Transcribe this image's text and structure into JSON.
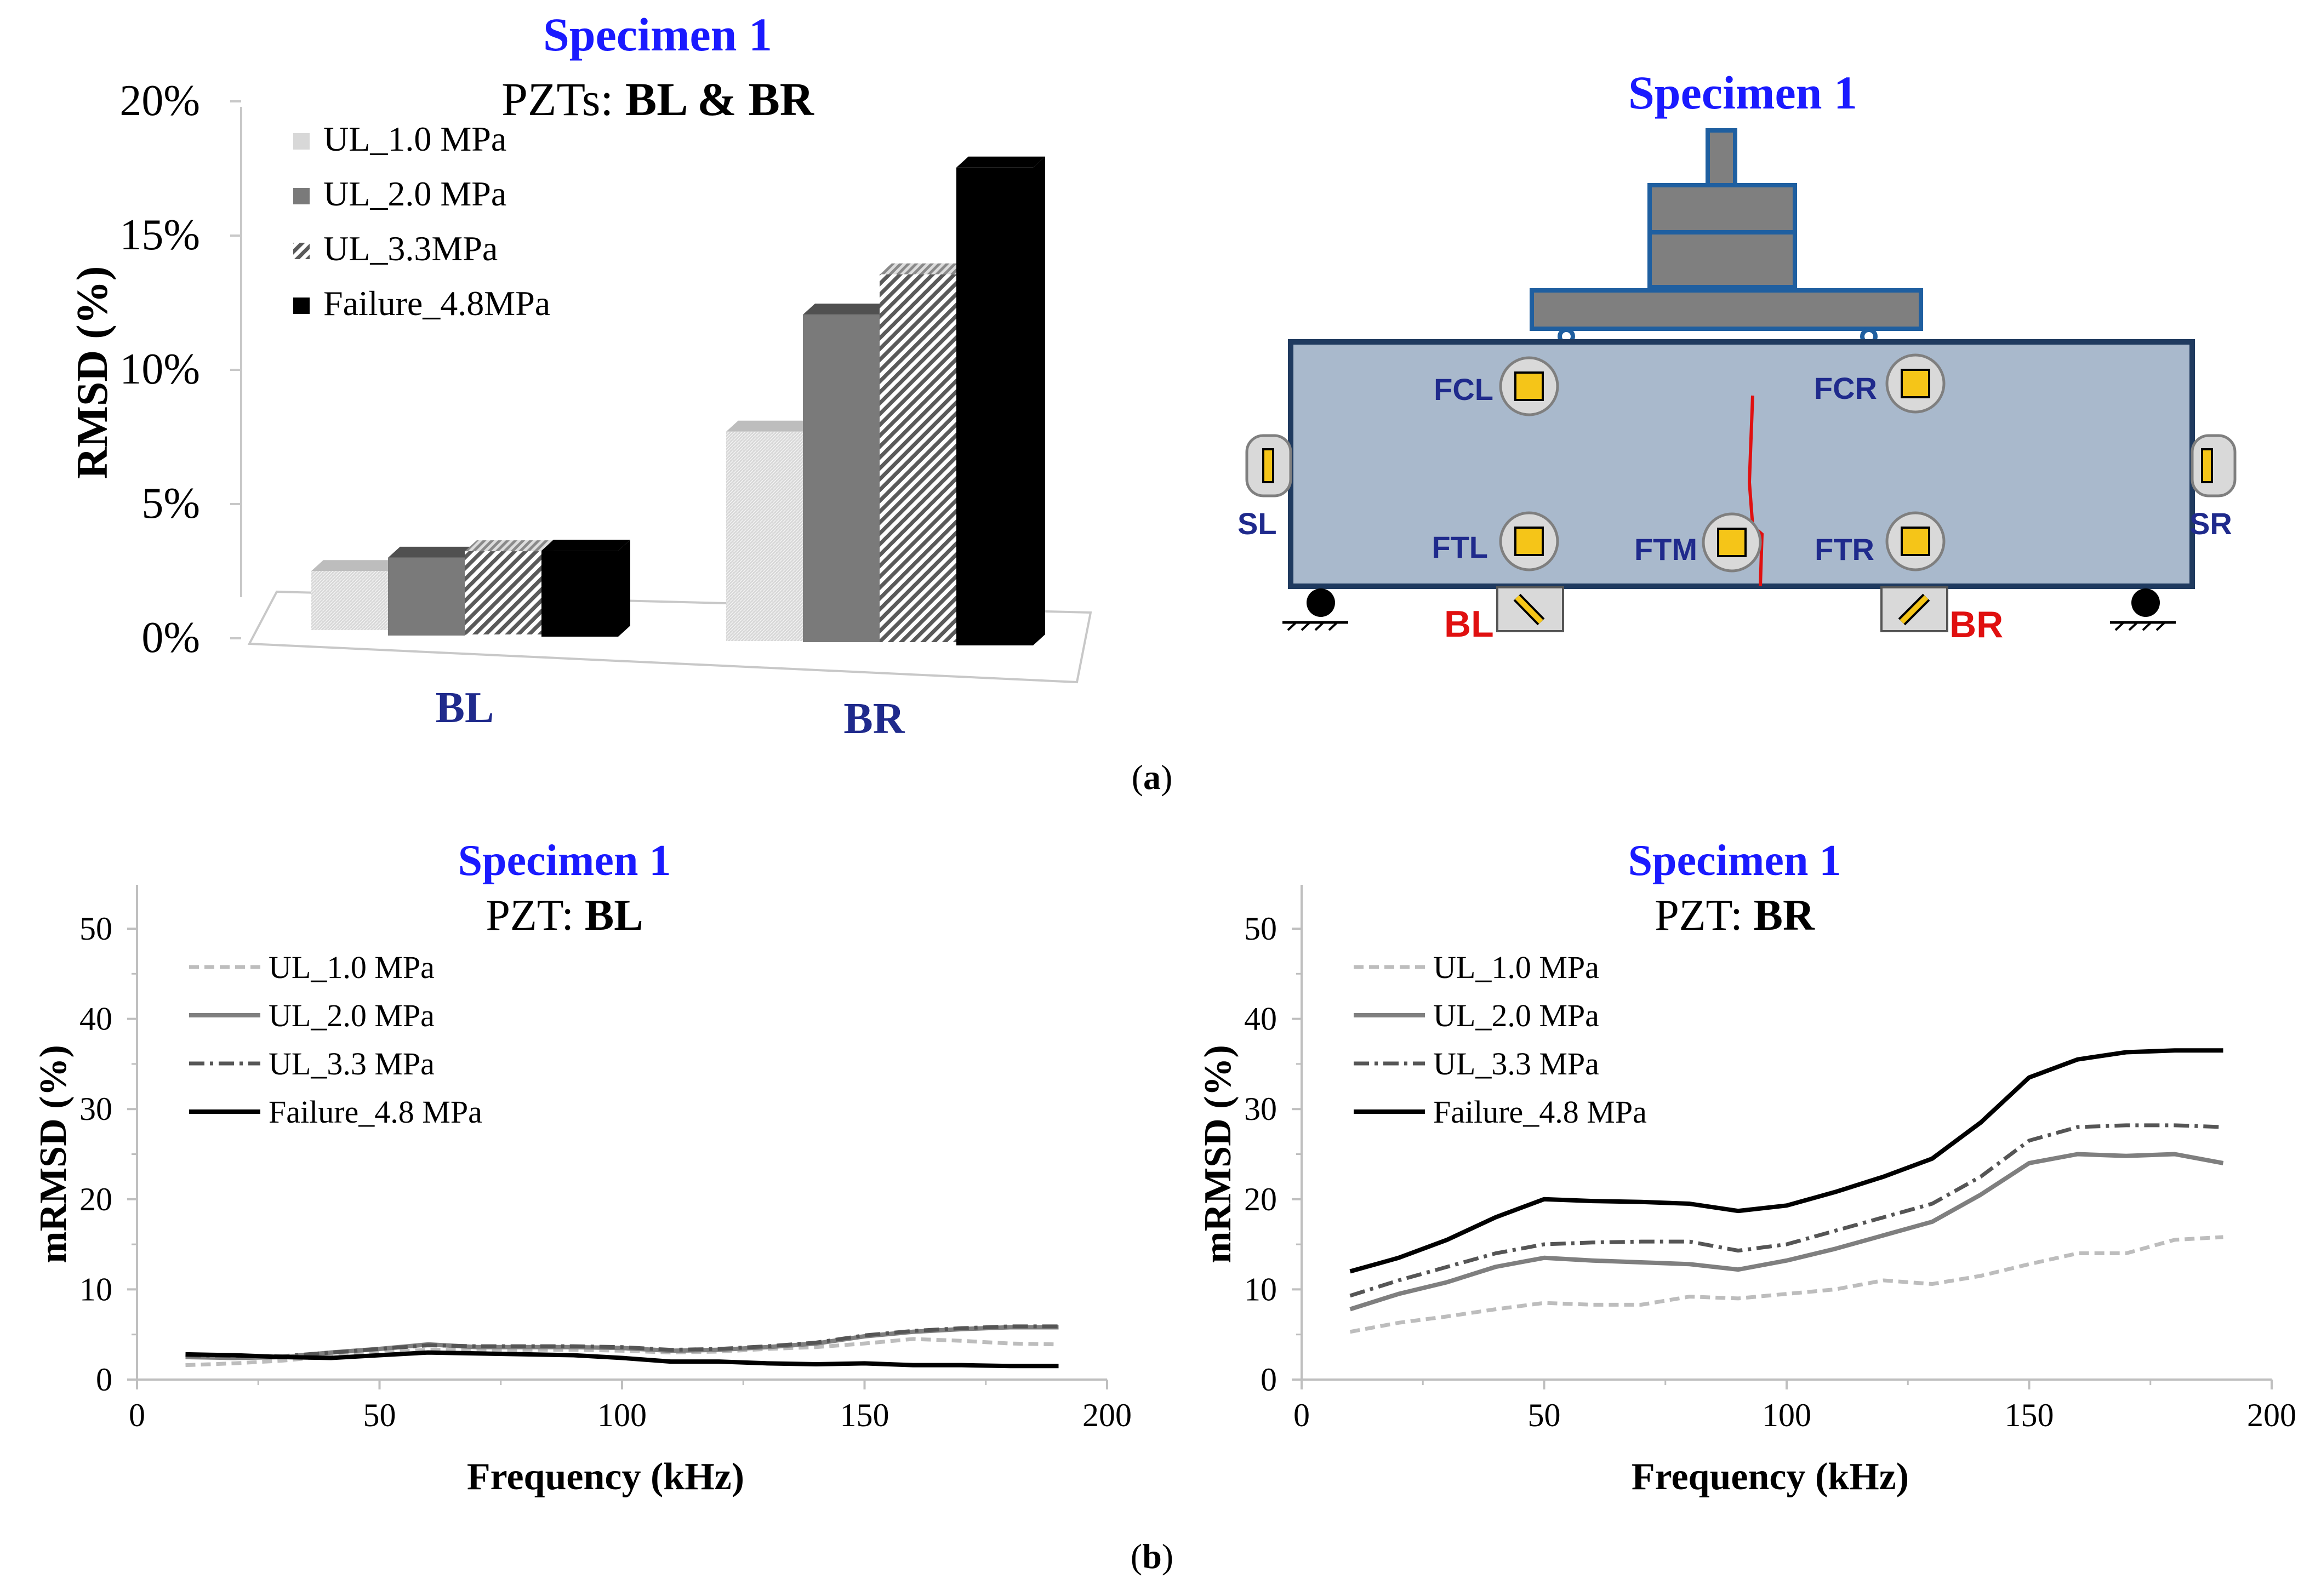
{
  "colors": {
    "title_blue": "#1a1aff",
    "category_blue": "#1f2a8c",
    "beam_fill": "#a9b9cc",
    "beam_stroke": "#1f3a5f",
    "loader_fill": "#7f7f7f",
    "loader_stroke": "#1f5fa0",
    "pzt_yellow": "#f5c518",
    "crack_red": "#e01010",
    "sensor_label_blue": "#1f2a8c",
    "bottom_label_red": "#e01010"
  },
  "panel_a": {
    "bar_chart": {
      "title_specimen": "Specimen 1",
      "title_prefix": "PZTs: ",
      "title_bold": "BL & BR",
      "chart_data": {
        "type": "bar",
        "categories": [
          "BL",
          "BR"
        ],
        "series": [
          {
            "name": "UL_1.0 MPa",
            "values": [
              2.2,
              7.8
            ],
            "pattern": "light"
          },
          {
            "name": "UL_2.0 MPa",
            "values": [
              2.9,
              12.2
            ],
            "pattern": "dark-gray"
          },
          {
            "name": "UL_3.3MPa",
            "values": [
              3.1,
              13.7
            ],
            "pattern": "hatched"
          },
          {
            "name": "Failure_4.8MPa",
            "values": [
              3.2,
              17.8
            ],
            "pattern": "black"
          }
        ],
        "ylabel": "RMSD (%)",
        "ylim": [
          0,
          20
        ],
        "yticks": [
          "0%",
          "5%",
          "10%",
          "15%",
          "20%"
        ]
      }
    },
    "diagram": {
      "title": "Specimen 1",
      "sensors": {
        "FCL": "FCL",
        "FCR": "FCR",
        "FTL": "FTL",
        "FTM": "FTM",
        "FTR": "FTR",
        "SL": "SL",
        "SR": "SR",
        "BL": "BL",
        "BR": "BR"
      }
    },
    "caption": "(a)"
  },
  "panel_b": {
    "line_charts": [
      {
        "title_specimen": "Specimen 1",
        "title_prefix": "PZT: ",
        "title_bold": "BL",
        "chart_data": {
          "type": "line",
          "xlabel": "Frequency (kHz)",
          "ylabel": "mRMSD (%)",
          "xlim": [
            0,
            200
          ],
          "ylim": [
            0,
            50
          ],
          "xticks": [
            "0",
            "50",
            "100",
            "150",
            "200"
          ],
          "yticks": [
            "0",
            "10",
            "20",
            "30",
            "40",
            "50"
          ],
          "series": [
            {
              "name": "UL_1.0 MPa",
              "style": "dashed-light",
              "x": [
                10,
                20,
                30,
                40,
                50,
                60,
                70,
                80,
                90,
                100,
                110,
                120,
                130,
                140,
                150,
                160,
                170,
                180,
                190
              ],
              "y": [
                1.6,
                1.8,
                2.1,
                2.6,
                3.0,
                3.3,
                3.3,
                3.3,
                3.3,
                3.2,
                3.0,
                3.1,
                3.4,
                3.6,
                4.0,
                4.5,
                4.3,
                4.0,
                3.9
              ]
            },
            {
              "name": "UL_2.0 MPa",
              "style": "solid-gray",
              "x": [
                10,
                20,
                30,
                40,
                50,
                60,
                70,
                80,
                90,
                100,
                110,
                120,
                130,
                140,
                150,
                160,
                170,
                180,
                190
              ],
              "y": [
                2.5,
                2.4,
                2.5,
                3.0,
                3.4,
                3.9,
                3.6,
                3.6,
                3.6,
                3.5,
                3.2,
                3.3,
                3.6,
                4.0,
                4.8,
                5.3,
                5.6,
                5.8,
                5.8
              ]
            },
            {
              "name": "UL_3.3 MPa",
              "style": "dashdot-dark",
              "x": [
                10,
                20,
                30,
                40,
                50,
                60,
                70,
                80,
                90,
                100,
                110,
                120,
                130,
                140,
                150,
                160,
                170,
                180,
                190
              ],
              "y": [
                2.7,
                2.6,
                2.6,
                3.0,
                3.4,
                3.8,
                3.7,
                3.7,
                3.7,
                3.6,
                3.3,
                3.4,
                3.7,
                4.1,
                4.9,
                5.4,
                5.7,
                5.9,
                5.9
              ]
            },
            {
              "name": "Failure_4.8 MPa",
              "style": "solid-black",
              "x": [
                10,
                20,
                30,
                40,
                50,
                60,
                70,
                80,
                90,
                100,
                110,
                120,
                130,
                140,
                150,
                160,
                170,
                180,
                190
              ],
              "y": [
                2.8,
                2.7,
                2.5,
                2.4,
                2.7,
                3.0,
                2.9,
                2.8,
                2.7,
                2.4,
                2.0,
                2.0,
                1.8,
                1.7,
                1.8,
                1.6,
                1.6,
                1.5,
                1.5
              ]
            }
          ],
          "legend": "top-left"
        }
      },
      {
        "title_specimen": "Specimen 1",
        "title_prefix": "PZT: ",
        "title_bold": "BR",
        "chart_data": {
          "type": "line",
          "xlabel": "Frequency (kHz)",
          "ylabel": "mRMSD (%)",
          "xlim": [
            0,
            200
          ],
          "ylim": [
            0,
            50
          ],
          "xticks": [
            "0",
            "50",
            "100",
            "150",
            "200"
          ],
          "yticks": [
            "0",
            "10",
            "20",
            "30",
            "40",
            "50"
          ],
          "series": [
            {
              "name": "UL_1.0 MPa",
              "style": "dashed-light",
              "x": [
                10,
                20,
                30,
                40,
                50,
                60,
                70,
                80,
                90,
                100,
                110,
                120,
                130,
                140,
                150,
                160,
                170,
                180,
                190
              ],
              "y": [
                5.3,
                6.3,
                7.0,
                7.8,
                8.5,
                8.3,
                8.3,
                9.2,
                9.0,
                9.5,
                10.0,
                11.0,
                10.6,
                11.5,
                12.8,
                14.0,
                14.0,
                15.5,
                15.8
              ]
            },
            {
              "name": "UL_2.0 MPa",
              "style": "solid-gray",
              "x": [
                10,
                20,
                30,
                40,
                50,
                60,
                70,
                80,
                90,
                100,
                110,
                120,
                130,
                140,
                150,
                160,
                170,
                180,
                190
              ],
              "y": [
                7.8,
                9.5,
                10.8,
                12.5,
                13.5,
                13.2,
                13.0,
                12.8,
                12.2,
                13.2,
                14.5,
                16.0,
                17.5,
                20.5,
                24.0,
                25.0,
                24.8,
                25.0,
                24.0
              ]
            },
            {
              "name": "UL_3.3 MPa",
              "style": "dashdot-dark",
              "x": [
                10,
                20,
                30,
                40,
                50,
                60,
                70,
                80,
                90,
                100,
                110,
                120,
                130,
                140,
                150,
                160,
                170,
                180,
                190
              ],
              "y": [
                9.3,
                11.0,
                12.5,
                14.0,
                15.0,
                15.2,
                15.3,
                15.3,
                14.3,
                15.0,
                16.5,
                18.0,
                19.5,
                22.5,
                26.5,
                28.0,
                28.2,
                28.2,
                28.0
              ]
            },
            {
              "name": "Failure_4.8 MPa",
              "style": "solid-black",
              "x": [
                10,
                20,
                30,
                40,
                50,
                60,
                70,
                80,
                90,
                100,
                110,
                120,
                130,
                140,
                150,
                160,
                170,
                180,
                190
              ],
              "y": [
                12.0,
                13.5,
                15.5,
                18.0,
                20.0,
                19.8,
                19.7,
                19.5,
                18.7,
                19.3,
                20.8,
                22.5,
                24.5,
                28.5,
                33.5,
                35.5,
                36.3,
                36.5,
                36.5
              ]
            }
          ],
          "legend": "top-left"
        }
      }
    ],
    "caption": "(b)"
  }
}
